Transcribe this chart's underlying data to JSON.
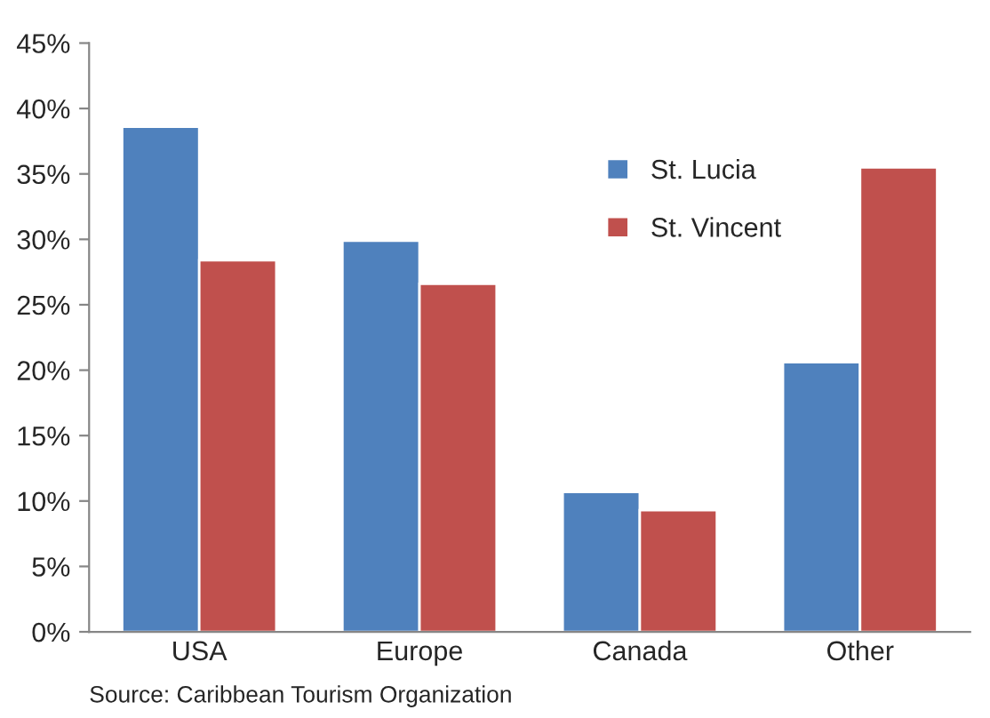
{
  "chart_data": {
    "type": "bar",
    "categories": [
      "USA",
      "Europe",
      "Canada",
      "Other"
    ],
    "series": [
      {
        "name": "St. Lucia",
        "color": "#4f81bd",
        "values": [
          38.6,
          29.9,
          10.7,
          20.6
        ]
      },
      {
        "name": "St. Vincent",
        "color": "#c0504d",
        "values": [
          28.4,
          26.6,
          9.3,
          35.5
        ]
      }
    ],
    "ylim": [
      0,
      45
    ],
    "yticks": [
      {
        "value": 0,
        "label": "0%"
      },
      {
        "value": 5,
        "label": "5%"
      },
      {
        "value": 10,
        "label": "10%"
      },
      {
        "value": 15,
        "label": "15%"
      },
      {
        "value": 20,
        "label": "20%"
      },
      {
        "value": 25,
        "label": "25%"
      },
      {
        "value": 30,
        "label": "30%"
      },
      {
        "value": 35,
        "label": "35%"
      },
      {
        "value": 40,
        "label": "40%"
      },
      {
        "value": 45,
        "label": "45%"
      }
    ],
    "grid": false,
    "legend": "top right",
    "annotations": [
      "Source: Caribbean Tourism Organization"
    ]
  }
}
